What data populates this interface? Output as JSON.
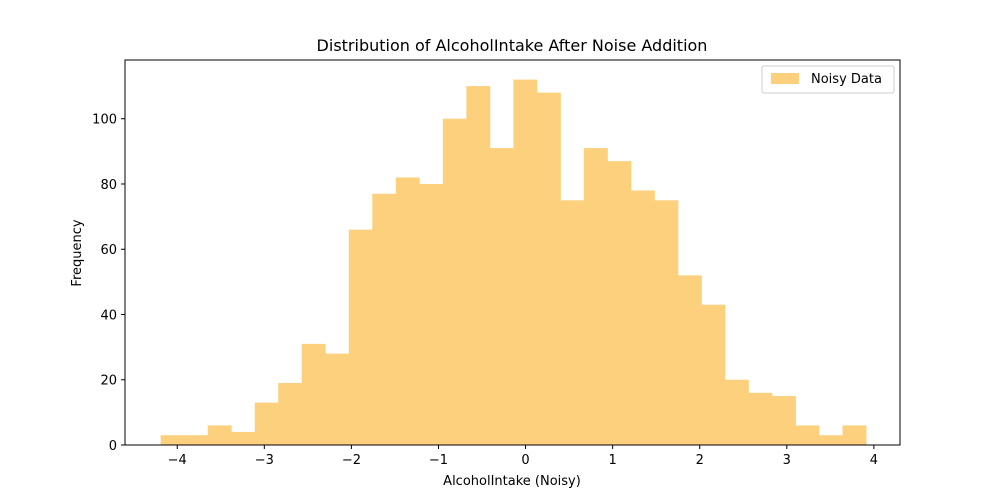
{
  "chart_data": {
    "type": "bar",
    "subtype": "histogram",
    "title": "Distribution of AlcoholIntake After Noise Addition",
    "xlabel": "AlcoholIntake (Noisy)",
    "ylabel": "Frequency",
    "xlim": [
      -4.6,
      4.3
    ],
    "ylim": [
      0,
      118
    ],
    "xticks": [
      -4,
      -3,
      -2,
      -1,
      0,
      1,
      2,
      3,
      4
    ],
    "xtick_labels": [
      "−4",
      "−3",
      "−2",
      "−1",
      "0",
      "1",
      "2",
      "3",
      "4"
    ],
    "yticks": [
      0,
      20,
      40,
      60,
      80,
      100
    ],
    "ytick_labels": [
      "0",
      "20",
      "40",
      "60",
      "80",
      "100"
    ],
    "legend": {
      "position": "top-right",
      "entries": [
        "Noisy Data"
      ]
    },
    "grid": false,
    "color": "#fdd07e",
    "bin_start": -4.19,
    "bin_width": 0.27,
    "series": [
      {
        "name": "Noisy Data",
        "values": [
          3,
          3,
          6,
          4,
          13,
          19,
          31,
          28,
          66,
          77,
          82,
          80,
          100,
          110,
          91,
          112,
          108,
          75,
          91,
          87,
          78,
          75,
          52,
          43,
          20,
          16,
          15,
          6,
          3,
          6
        ]
      }
    ]
  }
}
